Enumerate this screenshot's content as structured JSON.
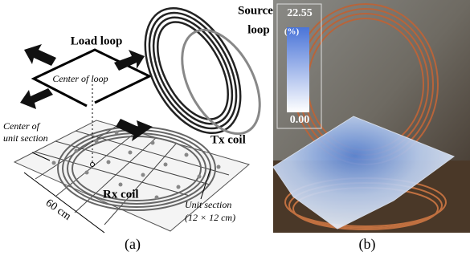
{
  "panel_a": {
    "caption": "(a)",
    "source_loop": [
      "Source",
      "loop"
    ],
    "load_loop": "Load loop",
    "center_of_loop": "Center of loop",
    "center_of_unit_section": [
      "Center of",
      "unit section"
    ],
    "tx_coil": "Tx coil",
    "rx_coil": "Rx coil",
    "dimension": "60 cm",
    "unit_section": [
      "Unit section",
      "(12 × 12 cm)"
    ]
  },
  "panel_b": {
    "caption": "(b)",
    "colorbar": {
      "max": "22.55",
      "unit": "(%)",
      "min": "0.00"
    }
  }
}
